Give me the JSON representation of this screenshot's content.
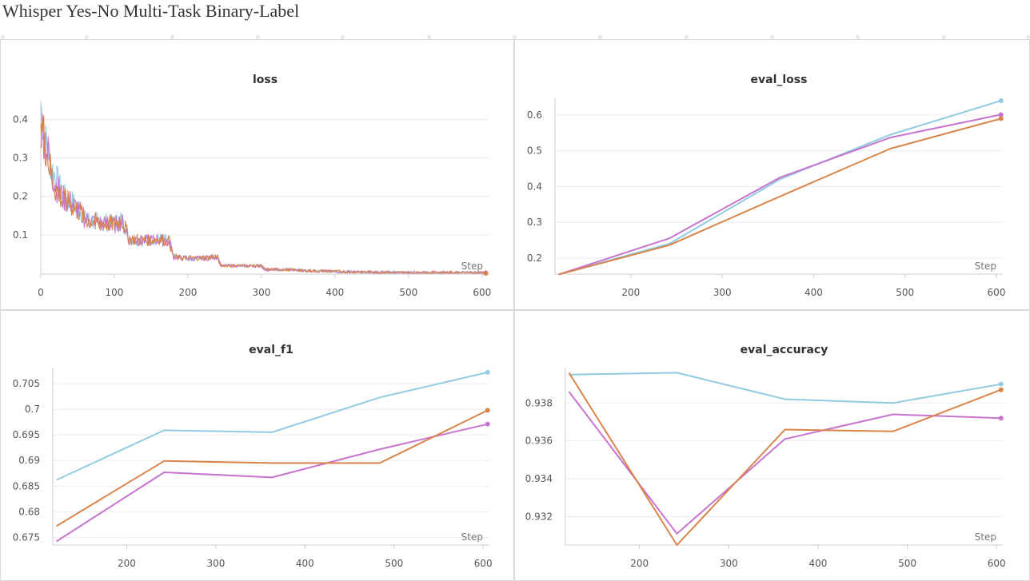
{
  "page": {
    "title": "Whisper Yes-No Multi-Task Binary-Label"
  },
  "colors": {
    "run_a": "#91cbe1",
    "run_b": "#c774cf",
    "run_c": "#d9844a"
  },
  "chart_data": [
    {
      "id": "loss",
      "type": "line",
      "title": "loss",
      "xlabel": "Step",
      "ylabel": "",
      "xlim": [
        0,
        610
      ],
      "ylim": [
        -0.002,
        0.44
      ],
      "xticks": [
        0,
        100,
        200,
        300,
        400,
        500,
        600
      ],
      "yticks": [
        0.1,
        0.2,
        0.3,
        0.4
      ],
      "ytick_labels": [
        "0.1",
        "0.2",
        "0.3",
        "0.4"
      ],
      "grid": true,
      "noisy": true,
      "series": [
        {
          "color": "#91cbe1",
          "x": [
            0,
            5,
            10,
            15,
            20,
            30,
            40,
            50,
            55,
            60,
            80,
            100,
            110,
            115,
            120,
            140,
            160,
            175,
            180,
            190,
            200,
            220,
            240,
            245,
            260,
            280,
            300,
            305,
            320,
            340,
            360,
            380,
            400,
            420,
            440,
            460,
            480,
            500,
            520,
            540,
            560,
            580,
            605
          ],
          "y": [
            0.44,
            0.35,
            0.32,
            0.27,
            0.25,
            0.2,
            0.19,
            0.17,
            0.16,
            0.14,
            0.135,
            0.13,
            0.14,
            0.12,
            0.09,
            0.085,
            0.09,
            0.085,
            0.045,
            0.04,
            0.04,
            0.04,
            0.045,
            0.02,
            0.02,
            0.02,
            0.02,
            0.01,
            0.01,
            0.01,
            0.008,
            0.006,
            0.005,
            0.004,
            0.003,
            0.003,
            0.003,
            0.002,
            0.002,
            0.002,
            0.002,
            0.002,
            0.001
          ]
        },
        {
          "color": "#c774cf",
          "x": [
            0,
            5,
            10,
            15,
            20,
            30,
            40,
            50,
            55,
            60,
            80,
            100,
            110,
            115,
            120,
            140,
            160,
            175,
            180,
            190,
            200,
            220,
            240,
            245,
            260,
            280,
            300,
            305,
            320,
            340,
            360,
            380,
            400,
            420,
            440,
            460,
            480,
            500,
            520,
            540,
            560,
            580,
            605
          ],
          "y": [
            0.38,
            0.36,
            0.31,
            0.26,
            0.23,
            0.195,
            0.185,
            0.165,
            0.155,
            0.14,
            0.13,
            0.125,
            0.135,
            0.115,
            0.088,
            0.084,
            0.088,
            0.082,
            0.043,
            0.04,
            0.038,
            0.039,
            0.043,
            0.019,
            0.02,
            0.019,
            0.019,
            0.009,
            0.01,
            0.009,
            0.007,
            0.006,
            0.005,
            0.004,
            0.003,
            0.003,
            0.002,
            0.002,
            0.002,
            0.002,
            0.002,
            0.002,
            0.001
          ]
        },
        {
          "color": "#d9844a",
          "x": [
            0,
            5,
            10,
            15,
            20,
            30,
            40,
            50,
            55,
            60,
            80,
            100,
            110,
            115,
            120,
            140,
            160,
            175,
            180,
            190,
            200,
            220,
            240,
            245,
            260,
            280,
            300,
            305,
            320,
            340,
            360,
            380,
            400,
            420,
            440,
            460,
            480,
            500,
            520,
            540,
            560,
            580,
            605
          ],
          "y": [
            0.4,
            0.35,
            0.3,
            0.25,
            0.22,
            0.19,
            0.18,
            0.165,
            0.155,
            0.14,
            0.13,
            0.128,
            0.138,
            0.118,
            0.09,
            0.085,
            0.09,
            0.083,
            0.044,
            0.04,
            0.04,
            0.04,
            0.044,
            0.02,
            0.02,
            0.02,
            0.02,
            0.01,
            0.01,
            0.009,
            0.007,
            0.006,
            0.005,
            0.004,
            0.003,
            0.003,
            0.002,
            0.002,
            0.002,
            0.002,
            0.002,
            0.002,
            0.0
          ]
        }
      ]
    },
    {
      "id": "eval_loss",
      "type": "line",
      "title": "eval_loss",
      "xlabel": "Step",
      "ylabel": "",
      "xlim": [
        117,
        607
      ],
      "ylim": [
        0.155,
        0.64
      ],
      "xticks": [
        200,
        300,
        400,
        500,
        600
      ],
      "yticks": [
        0.2,
        0.3,
        0.4,
        0.5,
        0.6
      ],
      "ytick_labels": [
        "0.2",
        "0.3",
        "0.4",
        "0.5",
        "0.6"
      ],
      "grid": true,
      "series": [
        {
          "color": "#91cbe1",
          "x": [
            121,
            242,
            363,
            484,
            605
          ],
          "y": [
            0.154,
            0.24,
            0.42,
            0.545,
            0.64
          ]
        },
        {
          "color": "#c774cf",
          "x": [
            121,
            242,
            363,
            484,
            605
          ],
          "y": [
            0.154,
            0.255,
            0.425,
            0.537,
            0.601
          ]
        },
        {
          "color": "#d9844a",
          "x": [
            121,
            242,
            363,
            484,
            605
          ],
          "y": [
            0.154,
            0.236,
            0.372,
            0.506,
            0.59
          ]
        }
      ]
    },
    {
      "id": "eval_f1",
      "type": "line",
      "title": "eval_f1",
      "xlabel": "Step",
      "ylabel": "",
      "xlim": [
        117,
        607
      ],
      "ylim": [
        0.6735,
        0.7075
      ],
      "xticks": [
        200,
        300,
        400,
        500,
        600
      ],
      "yticks": [
        0.675,
        0.68,
        0.685,
        0.69,
        0.695,
        0.7,
        0.705
      ],
      "ytick_labels": [
        "0.675",
        "0.68",
        "0.685",
        "0.69",
        "0.695",
        "0.7",
        "0.705"
      ],
      "grid": true,
      "series": [
        {
          "color": "#91cbe1",
          "x": [
            121,
            242,
            363,
            484,
            605
          ],
          "y": [
            0.6862,
            0.6959,
            0.6955,
            0.7023,
            0.7072
          ]
        },
        {
          "color": "#c774cf",
          "x": [
            121,
            242,
            363,
            484,
            605
          ],
          "y": [
            0.6742,
            0.6877,
            0.6867,
            0.6922,
            0.6971
          ]
        },
        {
          "color": "#d9844a",
          "x": [
            121,
            242,
            363,
            484,
            605
          ],
          "y": [
            0.6772,
            0.6899,
            0.6895,
            0.6895,
            0.6998
          ]
        }
      ]
    },
    {
      "id": "eval_accuracy",
      "type": "line",
      "title": "eval_accuracy",
      "xlabel": "Step",
      "ylabel": "",
      "xlim": [
        117,
        607
      ],
      "ylim": [
        0.9305,
        0.9397
      ],
      "xticks": [
        200,
        300,
        400,
        500,
        600
      ],
      "yticks": [
        0.932,
        0.934,
        0.936,
        0.938
      ],
      "ytick_labels": [
        "0.932",
        "0.934",
        "0.936",
        "0.938"
      ],
      "grid": true,
      "series": [
        {
          "color": "#91cbe1",
          "x": [
            121,
            242,
            363,
            484,
            605
          ],
          "y": [
            0.9395,
            0.9396,
            0.9382,
            0.938,
            0.939
          ]
        },
        {
          "color": "#c774cf",
          "x": [
            121,
            242,
            363,
            484,
            605
          ],
          "y": [
            0.9386,
            0.9311,
            0.9361,
            0.9374,
            0.9372
          ]
        },
        {
          "color": "#d9844a",
          "x": [
            121,
            242,
            363,
            484,
            605
          ],
          "y": [
            0.9396,
            0.9305,
            0.9366,
            0.9365,
            0.9387
          ]
        }
      ]
    }
  ]
}
